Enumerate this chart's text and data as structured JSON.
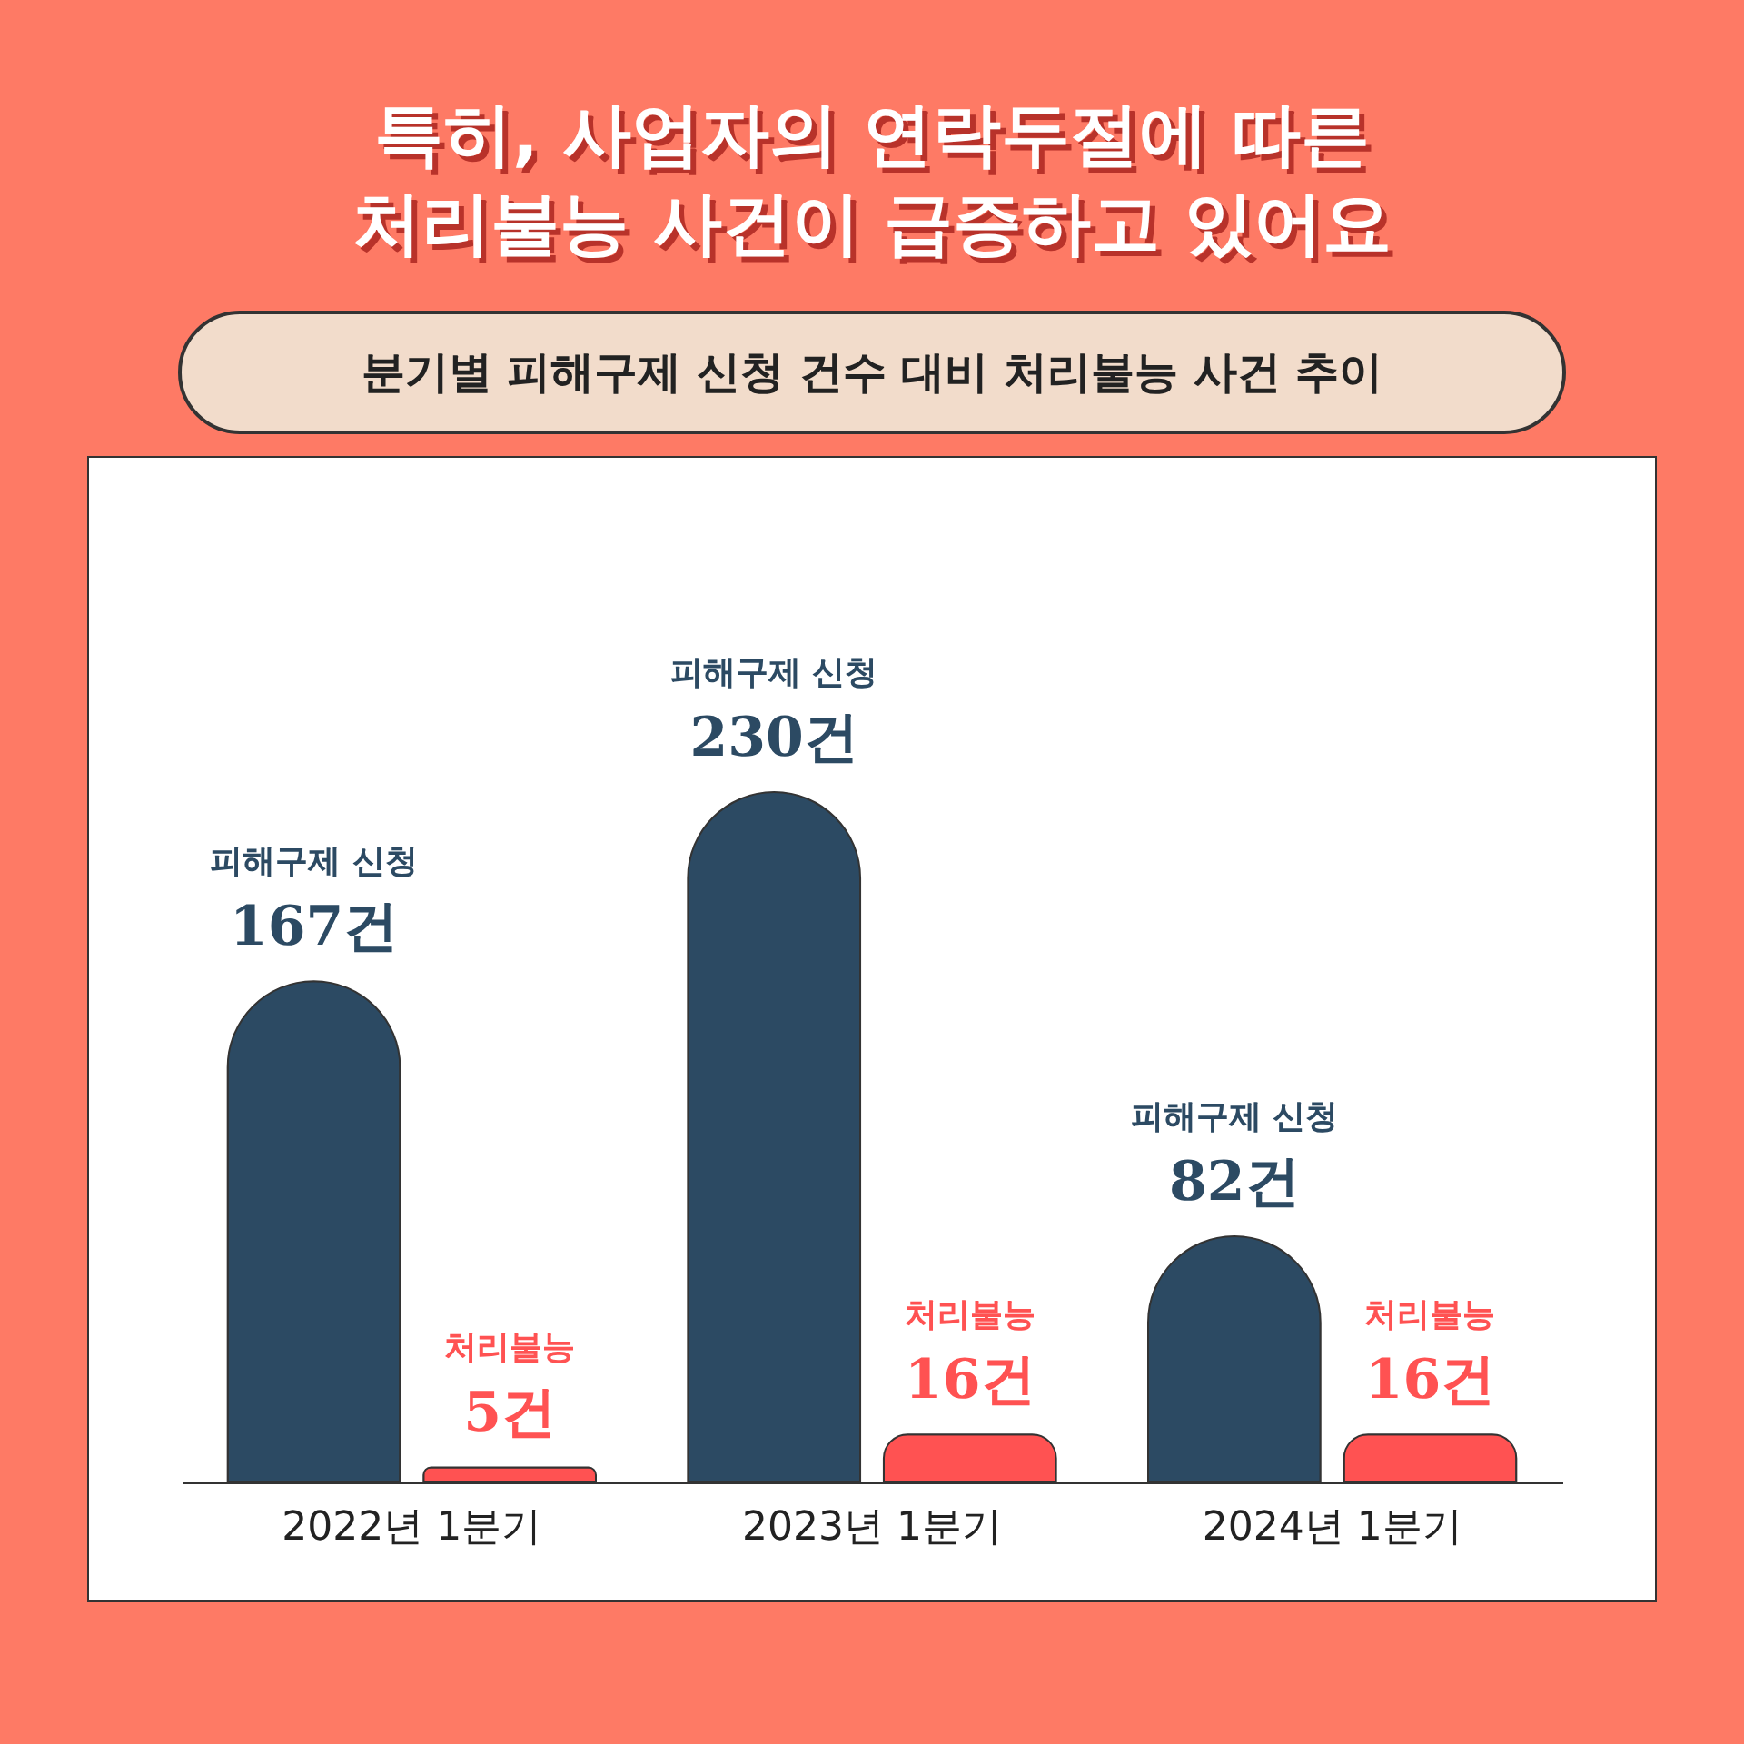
{
  "chart_data": {
    "type": "bar",
    "title": "특히, 사업자의 연락두절에 따른\n처리불능 사건이 급증하고 있어요",
    "subtitle": "분기별 피해구제 신청 건수 대비 처리불능 사건 추이",
    "categories": [
      "2022년 1분기",
      "2023년 1분기",
      "2024년 1분기"
    ],
    "series": [
      {
        "name": "피해구제 신청",
        "color": "#2c4a63",
        "values": [
          167,
          230,
          82
        ],
        "value_labels": [
          "167건",
          "230건",
          "82건"
        ]
      },
      {
        "name": "처리불능",
        "color": "#ff5252",
        "values": [
          5,
          16,
          16
        ],
        "value_labels": [
          "5건",
          "16건",
          "16건"
        ]
      }
    ]
  }
}
